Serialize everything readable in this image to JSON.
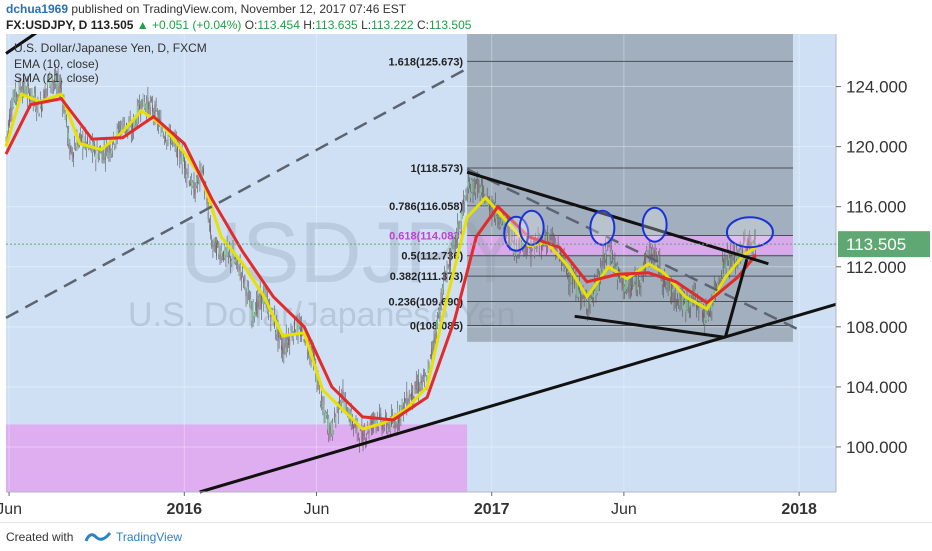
{
  "header": {
    "author": "dchua1969",
    "published": "published on TradingView.com, November 12, 2017 07:46 EST",
    "symbol": "FX:USDJPY, D",
    "last": "113.505",
    "change": "▲ +0.051 (+0.04%)",
    "open_label": "O:",
    "open": "113.454",
    "high_label": "H:",
    "high": "113.635",
    "low_label": "L:",
    "low": "113.222",
    "close_label": "C:",
    "close": "113.505"
  },
  "footer": {
    "created_with": "Created with",
    "brand": "TradingView"
  },
  "colors": {
    "pane": "#cfe0f5",
    "dark_box": "#9aa6b4",
    "magenta_zone": "#e0a8f0",
    "price_line": "#5fa873",
    "ema": "#e8e000",
    "sma": "#e22b2b"
  },
  "chart_data": {
    "type": "candlestick",
    "title": "U.S. Dollar/Japanese Yen, D, FXCM",
    "watermark_symbol": "USDJPY",
    "watermark_name": "U.S. Dollar/Japanese Yen",
    "indicators": [
      "EMA (10, close)",
      "SMA (21, close)"
    ],
    "ylim": [
      97,
      127.5
    ],
    "y_ticks": [
      100,
      104,
      108,
      112,
      116,
      120,
      124
    ],
    "y_tick_labels": [
      "100.000",
      "104.000",
      "108.000",
      "112.000",
      "116.000",
      "120.000",
      "124.000"
    ],
    "x_ticks": [
      {
        "label": "Jun",
        "x": 2015.43
      },
      {
        "label": "2016",
        "x": 2016.0
      },
      {
        "label": "Jun",
        "x": 2016.43
      },
      {
        "label": "2017",
        "x": 2017.0
      },
      {
        "label": "Jun",
        "x": 2017.43
      },
      {
        "label": "2018",
        "x": 2018.0
      }
    ],
    "xlim": [
      2015.42,
      2018.12
    ],
    "current_price": 113.505,
    "current_price_label": "113.505",
    "fib_range": [
      2016.92,
      2017.98
    ],
    "fib_levels": [
      {
        "label": "1.618(125.673)",
        "value": 125.673
      },
      {
        "label": "1(118.573)",
        "value": 118.573
      },
      {
        "label": "0.786(116.058)",
        "value": 116.058
      },
      {
        "label": "0.618(114.083)",
        "value": 114.083
      },
      {
        "label": "0.5(112.736)",
        "value": 112.736
      },
      {
        "label": "0.382(111.373)",
        "value": 111.373
      },
      {
        "label": "0.236(109.690)",
        "value": 109.69
      },
      {
        "label": "0(108.085)",
        "value": 108.085
      }
    ],
    "price_path": [
      [
        2015.42,
        120.5
      ],
      [
        2015.44,
        123.0
      ],
      [
        2015.47,
        124.0
      ],
      [
        2015.5,
        123.5
      ],
      [
        2015.53,
        122.5
      ],
      [
        2015.56,
        124.5
      ],
      [
        2015.6,
        124.0
      ],
      [
        2015.63,
        119.5
      ],
      [
        2015.66,
        120.5
      ],
      [
        2015.7,
        119.8
      ],
      [
        2015.73,
        119.5
      ],
      [
        2015.76,
        120.0
      ],
      [
        2015.8,
        121.5
      ],
      [
        2015.83,
        121.0
      ],
      [
        2015.86,
        123.0
      ],
      [
        2015.9,
        122.5
      ],
      [
        2015.93,
        121.0
      ],
      [
        2015.96,
        120.5
      ],
      [
        2016.0,
        119.0
      ],
      [
        2016.03,
        117.0
      ],
      [
        2016.06,
        118.5
      ],
      [
        2016.09,
        113.5
      ],
      [
        2016.12,
        113.0
      ],
      [
        2016.16,
        112.5
      ],
      [
        2016.19,
        111.5
      ],
      [
        2016.22,
        109.0
      ],
      [
        2016.26,
        110.0
      ],
      [
        2016.29,
        108.5
      ],
      [
        2016.32,
        106.5
      ],
      [
        2016.36,
        108.0
      ],
      [
        2016.39,
        107.5
      ],
      [
        2016.42,
        106.0
      ],
      [
        2016.45,
        102.5
      ],
      [
        2016.48,
        101.0
      ],
      [
        2016.51,
        103.5
      ],
      [
        2016.55,
        101.5
      ],
      [
        2016.58,
        100.5
      ],
      [
        2016.62,
        102.0
      ],
      [
        2016.65,
        101.5
      ],
      [
        2016.68,
        101.5
      ],
      [
        2016.72,
        103.0
      ],
      [
        2016.76,
        104.0
      ],
      [
        2016.79,
        104.5
      ],
      [
        2016.82,
        108.0
      ],
      [
        2016.85,
        111.5
      ],
      [
        2016.88,
        113.5
      ],
      [
        2016.92,
        117.0
      ],
      [
        2016.95,
        117.5
      ],
      [
        2016.98,
        116.5
      ],
      [
        2017.02,
        115.5
      ],
      [
        2017.05,
        114.5
      ],
      [
        2017.08,
        113.0
      ],
      [
        2017.1,
        114.0
      ],
      [
        2017.12,
        113.0
      ],
      [
        2017.15,
        113.5
      ],
      [
        2017.18,
        114.0
      ],
      [
        2017.22,
        113.0
      ],
      [
        2017.25,
        111.5
      ],
      [
        2017.28,
        110.5
      ],
      [
        2017.31,
        109.5
      ],
      [
        2017.34,
        110.5
      ],
      [
        2017.38,
        113.5
      ],
      [
        2017.41,
        111.5
      ],
      [
        2017.44,
        110.5
      ],
      [
        2017.48,
        111.0
      ],
      [
        2017.51,
        113.0
      ],
      [
        2017.54,
        112.5
      ],
      [
        2017.56,
        111.0
      ],
      [
        2017.6,
        110.0
      ],
      [
        2017.63,
        109.5
      ],
      [
        2017.66,
        110.0
      ],
      [
        2017.7,
        108.5
      ],
      [
        2017.73,
        110.5
      ],
      [
        2017.76,
        112.5
      ],
      [
        2017.8,
        112.5
      ],
      [
        2017.82,
        113.5
      ],
      [
        2017.85,
        113.5
      ],
      [
        2017.86,
        113.5
      ]
    ],
    "ema_path": [
      [
        2015.42,
        120.0
      ],
      [
        2015.47,
        123.5
      ],
      [
        2015.53,
        123.0
      ],
      [
        2015.6,
        123.5
      ],
      [
        2015.66,
        120.2
      ],
      [
        2015.73,
        119.8
      ],
      [
        2015.8,
        121.0
      ],
      [
        2015.86,
        122.4
      ],
      [
        2015.93,
        121.4
      ],
      [
        2016.0,
        119.6
      ],
      [
        2016.06,
        117.8
      ],
      [
        2016.12,
        114.0
      ],
      [
        2016.19,
        112.2
      ],
      [
        2016.26,
        110.0
      ],
      [
        2016.32,
        107.4
      ],
      [
        2016.39,
        107.6
      ],
      [
        2016.45,
        103.8
      ],
      [
        2016.51,
        102.6
      ],
      [
        2016.58,
        101.2
      ],
      [
        2016.65,
        101.6
      ],
      [
        2016.72,
        102.5
      ],
      [
        2016.79,
        104.0
      ],
      [
        2016.85,
        109.5
      ],
      [
        2016.92,
        115.3
      ],
      [
        2016.98,
        116.6
      ],
      [
        2017.05,
        115.0
      ],
      [
        2017.12,
        113.4
      ],
      [
        2017.18,
        113.6
      ],
      [
        2017.25,
        112.0
      ],
      [
        2017.31,
        110.0
      ],
      [
        2017.38,
        112.0
      ],
      [
        2017.44,
        111.2
      ],
      [
        2017.51,
        112.2
      ],
      [
        2017.56,
        111.6
      ],
      [
        2017.63,
        110.0
      ],
      [
        2017.7,
        109.2
      ],
      [
        2017.76,
        111.3
      ],
      [
        2017.82,
        112.8
      ],
      [
        2017.86,
        113.3
      ]
    ],
    "sma_path": [
      [
        2015.42,
        119.5
      ],
      [
        2015.5,
        122.8
      ],
      [
        2015.6,
        123.2
      ],
      [
        2015.7,
        120.5
      ],
      [
        2015.8,
        120.6
      ],
      [
        2015.9,
        122.0
      ],
      [
        2016.0,
        120.2
      ],
      [
        2016.09,
        116.5
      ],
      [
        2016.19,
        113.0
      ],
      [
        2016.29,
        110.0
      ],
      [
        2016.39,
        108.0
      ],
      [
        2016.48,
        104.0
      ],
      [
        2016.58,
        102.0
      ],
      [
        2016.68,
        101.8
      ],
      [
        2016.79,
        103.3
      ],
      [
        2016.88,
        108.5
      ],
      [
        2016.95,
        114.0
      ],
      [
        2017.02,
        116.0
      ],
      [
        2017.12,
        114.0
      ],
      [
        2017.22,
        113.3
      ],
      [
        2017.31,
        111.0
      ],
      [
        2017.41,
        111.5
      ],
      [
        2017.51,
        111.6
      ],
      [
        2017.6,
        111.0
      ],
      [
        2017.7,
        109.6
      ],
      [
        2017.8,
        111.3
      ],
      [
        2017.86,
        112.8
      ]
    ],
    "trendlines": [
      {
        "style": "dashed",
        "from": [
          2015.42,
          108.6
        ],
        "to": [
          2016.92,
          125.2
        ]
      },
      {
        "style": "dashed",
        "from": [
          2016.92,
          118.5
        ],
        "to": [
          2018.0,
          107.8
        ]
      },
      {
        "style": "solid",
        "from": [
          2016.05,
          97.0
        ],
        "to": [
          2018.12,
          109.5
        ]
      },
      {
        "style": "solid",
        "from": [
          2016.92,
          118.3
        ],
        "to": [
          2017.9,
          112.2
        ]
      },
      {
        "style": "solid",
        "from": [
          2017.27,
          108.7
        ],
        "to": [
          2017.76,
          107.3
        ]
      },
      {
        "style": "solid",
        "from": [
          2017.76,
          107.3
        ],
        "to": [
          2017.83,
          112.5
        ]
      },
      {
        "style": "solid",
        "from": [
          2015.42,
          126.2
        ],
        "to": [
          2015.52,
          127.6
        ]
      }
    ],
    "ellipses": [
      {
        "x": 2017.08,
        "y": 114.2
      },
      {
        "x": 2017.13,
        "y": 114.6
      },
      {
        "x": 2017.36,
        "y": 114.6
      },
      {
        "x": 2017.53,
        "y": 114.8
      },
      {
        "x": 2017.84,
        "y": 114.3
      }
    ],
    "zones": [
      {
        "name": "fib-box",
        "x": [
          2016.92,
          2017.98
        ],
        "y": [
          107.0,
          127.5
        ]
      },
      {
        "name": "magenta-band",
        "x": [
          2016.92,
          2017.98
        ],
        "y": [
          112.8,
          114.1
        ]
      },
      {
        "name": "magenta-bottom",
        "x": [
          2015.42,
          2016.92
        ],
        "y": [
          97.0,
          101.5
        ]
      }
    ]
  }
}
